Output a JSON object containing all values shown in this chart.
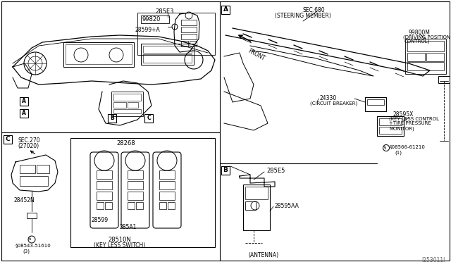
{
  "bg_color": "#ffffff",
  "line_color": "#000000",
  "gray_color": "#888888",
  "light_gray": "#cccccc",
  "fig_width": 6.4,
  "fig_height": 3.72,
  "dpi": 100,
  "labels": {
    "285e3": "285E3",
    "99820": "99820",
    "28599a": "28599+A",
    "sec680": "SEC.680",
    "steering": "(STEERING MEMBER)",
    "front": "FRONT",
    "99800m": "99800M",
    "drv1": "(DRIVING POSITION",
    "drv2": "CONTROL)",
    "24330": "24330",
    "circuit": "(CIRCUIT BREAKER)",
    "28595x": "28595X",
    "keyless1": "(KEY LESS CONTROL",
    "keyless2": "+TIRE PRESSURE",
    "keyless3": "MONITOR)",
    "screw1": "§08566-61210",
    "screw1b": "(1)",
    "j253011j": "J253011J",
    "sec270": "SEC.270",
    "sec270b": "(27020)",
    "28452n": "28452N",
    "screw2": "§08543-51610",
    "screw2b": "(3)",
    "28268": "28268",
    "28510n": "28510N",
    "keyless_sw": "(KEY LESS SWITCH)",
    "28599": "28599",
    "285a1": "285A1",
    "285e5": "285E5",
    "28595aa": "28595AA",
    "antenna": "(ANTENNA)",
    "label_a": "A",
    "label_b": "B",
    "label_c": "C"
  }
}
